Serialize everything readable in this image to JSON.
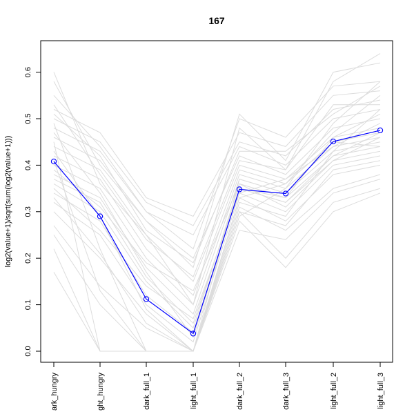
{
  "chart_data": {
    "type": "line",
    "title": "167",
    "xlabel": "",
    "ylabel": "log2(value+1)/sqrt(sum(log2(value+1)))",
    "categories": [
      "dark_hungry",
      "light_hungry",
      "dark_full_1",
      "light_full_1",
      "dark_full_2",
      "dark_full_3",
      "light_full_2",
      "light_full_3"
    ],
    "category_labels_visible": [
      "ark_hungry",
      "ght_hungry",
      "dark_full_1",
      "light_full_1",
      "dark_full_2",
      "dark_full_3",
      "light_full_2",
      "light_full_3"
    ],
    "ylim": [
      -0.02,
      0.66
    ],
    "yticks": [
      0.0,
      0.1,
      0.2,
      0.3,
      0.4,
      0.5,
      0.6
    ],
    "ytick_labels": [
      "0.0",
      "0.1",
      "0.2",
      "0.3",
      "0.4",
      "0.5",
      "0.6"
    ],
    "grid": false,
    "colors": {
      "highlight": "#0000ff",
      "background_series": "#dcdcdc"
    },
    "highlight_series": {
      "values": [
        0.408,
        0.29,
        0.112,
        0.038,
        0.348,
        0.339,
        0.451,
        0.475
      ]
    },
    "background_series": [
      [
        0.17,
        0.0,
        0.0,
        0.0,
        0.28,
        0.18,
        0.3,
        0.34
      ],
      [
        0.22,
        0.0,
        0.0,
        0.0,
        0.3,
        0.2,
        0.32,
        0.35
      ],
      [
        0.25,
        0.1,
        0.0,
        0.0,
        0.26,
        0.24,
        0.34,
        0.37
      ],
      [
        0.27,
        0.14,
        0.05,
        0.0,
        0.31,
        0.26,
        0.35,
        0.38
      ],
      [
        0.3,
        0.2,
        0.08,
        0.0,
        0.33,
        0.28,
        0.38,
        0.4
      ],
      [
        0.32,
        0.25,
        0.1,
        0.02,
        0.34,
        0.3,
        0.4,
        0.42
      ],
      [
        0.34,
        0.28,
        0.12,
        0.04,
        0.35,
        0.32,
        0.41,
        0.43
      ],
      [
        0.36,
        0.3,
        0.15,
        0.05,
        0.36,
        0.33,
        0.42,
        0.44
      ],
      [
        0.38,
        0.33,
        0.18,
        0.08,
        0.37,
        0.34,
        0.43,
        0.45
      ],
      [
        0.4,
        0.35,
        0.2,
        0.1,
        0.38,
        0.35,
        0.44,
        0.46
      ],
      [
        0.42,
        0.37,
        0.22,
        0.12,
        0.39,
        0.36,
        0.45,
        0.47
      ],
      [
        0.44,
        0.39,
        0.25,
        0.15,
        0.4,
        0.37,
        0.46,
        0.48
      ],
      [
        0.46,
        0.41,
        0.28,
        0.2,
        0.42,
        0.38,
        0.48,
        0.5
      ],
      [
        0.48,
        0.43,
        0.3,
        0.25,
        0.44,
        0.4,
        0.5,
        0.52
      ],
      [
        0.5,
        0.45,
        0.32,
        0.27,
        0.45,
        0.42,
        0.52,
        0.54
      ],
      [
        0.52,
        0.47,
        0.33,
        0.29,
        0.47,
        0.44,
        0.55,
        0.56
      ],
      [
        0.55,
        0.44,
        0.3,
        0.22,
        0.5,
        0.46,
        0.57,
        0.58
      ],
      [
        0.58,
        0.4,
        0.28,
        0.18,
        0.51,
        0.41,
        0.6,
        0.62
      ],
      [
        0.6,
        0.36,
        0.25,
        0.1,
        0.48,
        0.39,
        0.58,
        0.64
      ],
      [
        0.45,
        0.0,
        0.0,
        0.0,
        0.32,
        0.29,
        0.43,
        0.52
      ],
      [
        0.41,
        0.13,
        0.0,
        0.0,
        0.33,
        0.36,
        0.47,
        0.55
      ],
      [
        0.49,
        0.22,
        0.0,
        0.0,
        0.29,
        0.35,
        0.49,
        0.58
      ],
      [
        0.39,
        0.31,
        0.19,
        0.13,
        0.36,
        0.31,
        0.41,
        0.46
      ],
      [
        0.35,
        0.26,
        0.14,
        0.07,
        0.34,
        0.37,
        0.44,
        0.49
      ],
      [
        0.47,
        0.34,
        0.17,
        0.03,
        0.35,
        0.33,
        0.46,
        0.51
      ],
      [
        0.53,
        0.38,
        0.24,
        0.16,
        0.41,
        0.39,
        0.53,
        0.53
      ],
      [
        0.43,
        0.29,
        0.09,
        0.0,
        0.37,
        0.34,
        0.45,
        0.44
      ],
      [
        0.33,
        0.21,
        0.06,
        0.0,
        0.3,
        0.27,
        0.39,
        0.41
      ],
      [
        0.51,
        0.42,
        0.26,
        0.19,
        0.43,
        0.43,
        0.51,
        0.57
      ],
      [
        0.37,
        0.32,
        0.16,
        0.06,
        0.35,
        0.32,
        0.42,
        0.47
      ]
    ]
  }
}
